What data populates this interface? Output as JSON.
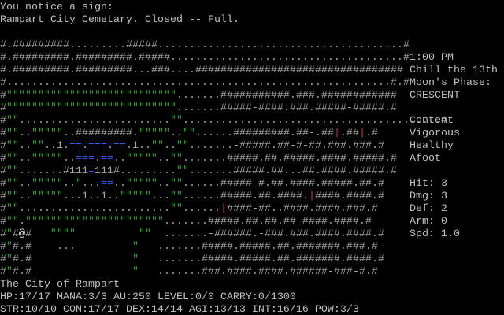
{
  "messages": [
    "You notice a sign:",
    "Rampart City Cemetary. Closed -- Full."
  ],
  "map": [
    "#.#########.........#####.......................................#",
    "#.#########.#########.#####.....................................#",
    "#.#########.#########...###....#################################",
    "#.............................................................#.#",
    "#\"\"\"\"\"\"\"\"\"\"\"\"\"\"\"\"\"\"\"\"\"\"\"\"\"\"\".......###########.###.############",
    "#\"\"\"\"\"\"\"\"\"\"\"\"\"\"\"\"\"\"\"\"\"\"\"\"\"\"\".......#####-####.###.#####-#####.#",
    "#\"\"........................\"\".........................................#",
    "#\"\"..\"\"\"\"\"..#########.\"\"\"\"\"..\"\"......#########.##-.##|.##|.#",
    "#\"\"..\"\"..1.==.===.==.1..\"\"..\"\".......-#####.##-#-##.###.###.#",
    "#\"\"..\"\"\"\"\"..===.==..\"\"\"\"\"..\"\".......#####.##.#####.####.#####.#",
    "#\"\".......#111=111#.........\"\".......#####.##...##.####.#####.#",
    "#\"\"..\"\"\"\"\"..\"...==..\"\"\"\"\"..\"\"......#####-#.##.####.#####.##.#",
    "#\"\"..\"\"\"\"\"...1..1..\"\"\"\"\"...\"\"......#####.##.####.|####.####.#",
    "#\"\"........................\"\"......|####-##..####.####.###.#",
    "#\"\".\"\"\"\"\"\"\"\"\"\"\"\"\"\"\"\"\"\"\"\"\"\".......#####.##.##.##-####.####.#",
    "#\"#@#   \"\"\"\"          \"\"  .......-######.-###.###.####.####.#",
    "#\"#.#    ...         \"   .......#####.#####.##.#######.###.#",
    "#\"#.#                \"   .......#####.#####.##.#######.####.#",
    "#\"#.#                \"   .......###.####.####.######-###-#.#"
  ],
  "side": {
    "time": "1:00 PM",
    "date": "Chill the 13th",
    "moon_label": "Moon's Phase:",
    "moon": "CRESCENT",
    "status": [
      "Content",
      "Vigorous",
      "Healthy",
      "Afoot"
    ],
    "stats": [
      "Hit: 3",
      "Dmg: 3",
      "Def: 2",
      "Arm: 0",
      "Spd: 1.0"
    ]
  },
  "location": "The City of Rampart",
  "status_line_1": "HP:17/17 MANA:3/3 AU:250 LEVEL:0/0 CARRY:0/1300",
  "status_line_2": "STR:10/10 CON:17/17 DEX:14/14 AGI:13/13 INT:16/16 POW:3/3"
}
